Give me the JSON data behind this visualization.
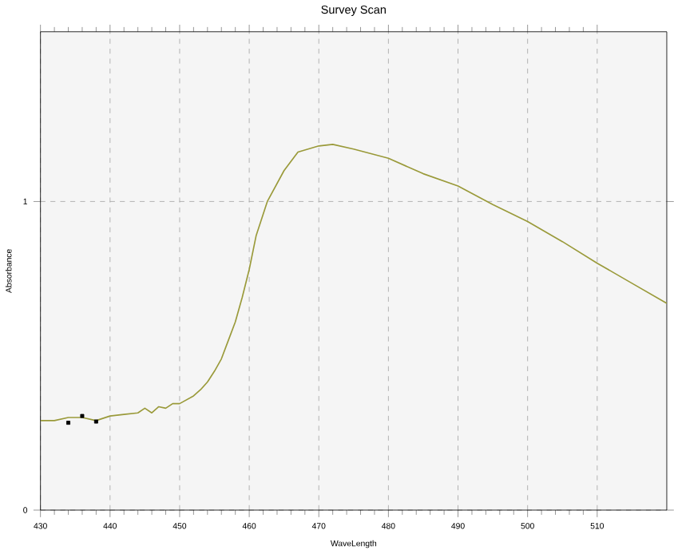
{
  "chart_data": {
    "type": "line",
    "title": "Survey Scan",
    "xlabel": "WaveLength",
    "ylabel": "Absorbance",
    "xlim": [
      430,
      520
    ],
    "ylim": [
      0,
      1.55
    ],
    "xticks": [
      430,
      440,
      450,
      460,
      470,
      480,
      490,
      500,
      510
    ],
    "yticks": [
      0,
      1
    ],
    "grid": true,
    "series": [
      {
        "color": "#9a9a3a",
        "marker": "none",
        "x": [
          430,
          432,
          434,
          436,
          438,
          440,
          442,
          444,
          445,
          446,
          447,
          448,
          449,
          450,
          452,
          453,
          454,
          455,
          456,
          457,
          458,
          459,
          460,
          461,
          462.6,
          465,
          467,
          470,
          472,
          475,
          480,
          485,
          490,
          495,
          500,
          505,
          510,
          515,
          520
        ],
        "values": [
          0.29,
          0.29,
          0.3,
          0.3,
          0.29,
          0.305,
          0.31,
          0.315,
          0.33,
          0.315,
          0.335,
          0.33,
          0.345,
          0.345,
          0.37,
          0.39,
          0.415,
          0.45,
          0.49,
          0.55,
          0.61,
          0.69,
          0.78,
          0.89,
          1.0,
          1.1,
          1.16,
          1.18,
          1.185,
          1.17,
          1.14,
          1.09,
          1.05,
          0.99,
          0.935,
          0.87,
          0.8,
          0.735,
          0.67
        ]
      },
      {
        "type": "scatter",
        "color": "#000000",
        "marker": "square",
        "x": [
          434,
          436,
          438
        ],
        "values": [
          0.283,
          0.305,
          0.287
        ]
      }
    ]
  }
}
